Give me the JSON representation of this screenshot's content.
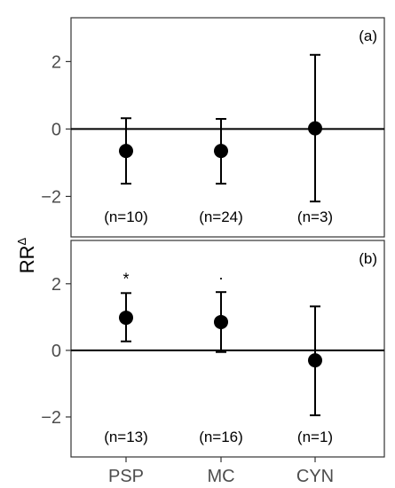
{
  "y_title": "RR",
  "y_title_sup": "Δ",
  "chart_data": [
    {
      "type": "scatter",
      "panel": "(a)",
      "categories": [
        "PSP",
        "MC",
        "CYN"
      ],
      "ylim": [
        -3.2,
        3.3
      ],
      "yticks": [
        -2,
        0,
        2
      ],
      "ytick_labels": [
        "−2",
        "0",
        "2"
      ],
      "reference_line": 0,
      "series": [
        {
          "values": [
            -0.65,
            -0.65,
            0.02
          ],
          "lower": [
            -1.62,
            -1.62,
            -2.15
          ],
          "upper": [
            0.32,
            0.3,
            2.2
          ]
        }
      ],
      "n_labels": [
        "(n=10)",
        "(n=24)",
        "(n=3)"
      ],
      "significance": [
        "",
        "",
        ""
      ]
    },
    {
      "type": "scatter",
      "panel": "(b)",
      "categories": [
        "PSP",
        "MC",
        "CYN"
      ],
      "ylim": [
        -3.2,
        3.3
      ],
      "yticks": [
        -2,
        0,
        2
      ],
      "ytick_labels": [
        "−2",
        "0",
        "2"
      ],
      "reference_line": 0,
      "series": [
        {
          "values": [
            0.98,
            0.85,
            -0.3
          ],
          "lower": [
            0.27,
            -0.05,
            -1.95
          ],
          "upper": [
            1.72,
            1.75,
            1.32
          ]
        }
      ],
      "n_labels": [
        "(n=13)",
        "(n=16)",
        "(n=1)"
      ],
      "significance": [
        "*",
        "·",
        ""
      ]
    }
  ]
}
